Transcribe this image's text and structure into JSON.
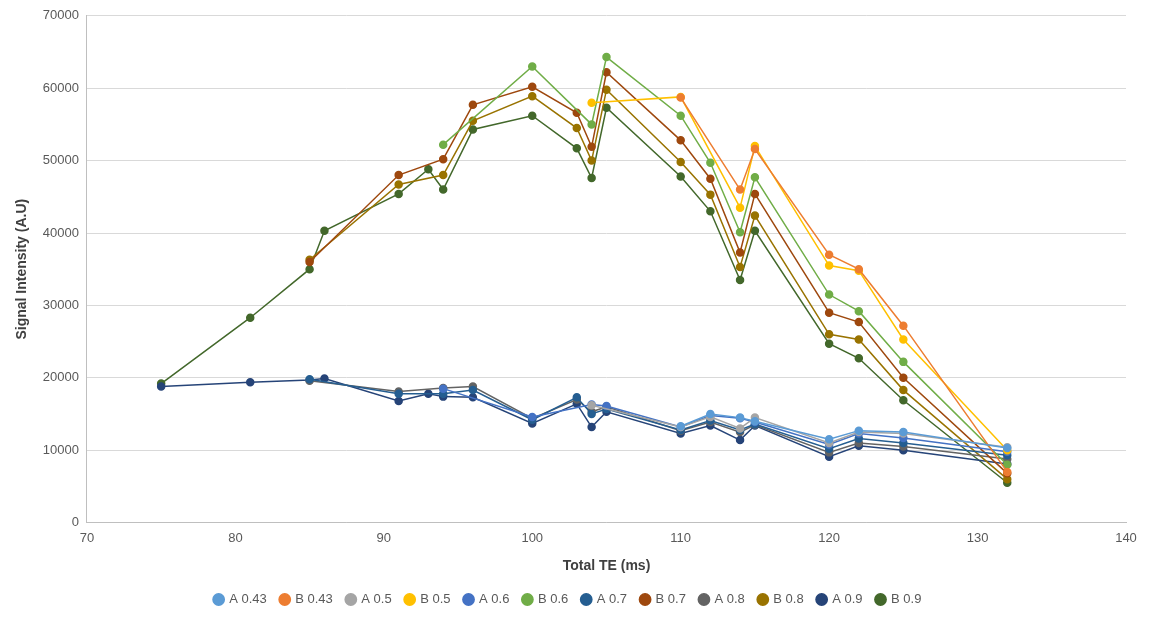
{
  "chart_data": {
    "type": "line",
    "x_label": "Total TE (ms)",
    "y_label": "Signal Intensity (A.U)",
    "xlim": [
      70,
      140
    ],
    "xticks": [
      70,
      80,
      90,
      100,
      110,
      120,
      130,
      140
    ],
    "ylim": [
      0,
      70000
    ],
    "yticks": [
      0,
      10000,
      20000,
      30000,
      40000,
      50000,
      60000,
      70000
    ],
    "grid": "y",
    "legend": "bottom",
    "marker": "circle",
    "series": [
      {
        "name": "A 0.43",
        "color": "#5b9bd5",
        "x": [
          110,
          112,
          114,
          115,
          120,
          122,
          125,
          132
        ],
        "values": [
          13300,
          15000,
          14500,
          14000,
          11500,
          12700,
          12500,
          10300
        ]
      },
      {
        "name": "B 0.43",
        "color": "#ed7d31",
        "x": [
          110,
          114,
          115,
          120,
          122,
          125,
          132
        ],
        "values": [
          58700,
          46000,
          51600,
          37000,
          35000,
          27200,
          7000
        ]
      },
      {
        "name": "A 0.5",
        "color": "#a5a5a5",
        "x": [
          104,
          110,
          112,
          114,
          115,
          120,
          122,
          125,
          132
        ],
        "values": [
          16200,
          13200,
          14600,
          13000,
          14500,
          11000,
          12500,
          12300,
          10400
        ]
      },
      {
        "name": "B 0.5",
        "color": "#ffc000",
        "x": [
          104,
          110,
          114,
          115,
          120,
          122,
          125,
          132
        ],
        "values": [
          58000,
          58800,
          43500,
          52000,
          35500,
          34800,
          25300,
          10000
        ]
      },
      {
        "name": "A 0.6",
        "color": "#4472c4",
        "x": [
          94,
          100,
          104,
          105,
          110,
          112,
          114,
          115,
          120,
          122,
          125,
          132
        ],
        "values": [
          18500,
          14600,
          16300,
          16100,
          13200,
          14800,
          14400,
          13900,
          10800,
          12300,
          11700,
          9800
        ]
      },
      {
        "name": "B 0.6",
        "color": "#70ad47",
        "x": [
          94,
          100,
          104,
          105,
          110,
          112,
          114,
          115,
          120,
          122,
          125,
          132
        ],
        "values": [
          52200,
          63000,
          55000,
          64300,
          56200,
          49700,
          40100,
          47700,
          31500,
          29200,
          22200,
          8000
        ]
      },
      {
        "name": "A 0.7",
        "color": "#255e91",
        "x": [
          85,
          91,
          94,
          96,
          100,
          103,
          104,
          105,
          110,
          112,
          114,
          115,
          120,
          122,
          125,
          132
        ],
        "values": [
          19800,
          17800,
          17800,
          18300,
          14200,
          17300,
          15000,
          15700,
          12800,
          14100,
          12800,
          13600,
          10200,
          11600,
          11000,
          9300
        ]
      },
      {
        "name": "B 0.7",
        "color": "#9e480e",
        "x": [
          85,
          91,
          94,
          96,
          100,
          103,
          104,
          105,
          110,
          112,
          114,
          115,
          120,
          122,
          125,
          132
        ],
        "values": [
          36000,
          48000,
          50200,
          57700,
          60200,
          56600,
          51900,
          62200,
          52800,
          47500,
          37300,
          45400,
          29000,
          27700,
          20000,
          6800
        ]
      },
      {
        "name": "A 0.8",
        "color": "#636363",
        "x": [
          85,
          91,
          94,
          96,
          100,
          103,
          104,
          105,
          110,
          112,
          114,
          115,
          120,
          122,
          125,
          132
        ],
        "values": [
          19600,
          18100,
          18600,
          18800,
          14400,
          17000,
          15300,
          16000,
          12700,
          13900,
          12500,
          13500,
          9700,
          11000,
          10500,
          8800
        ]
      },
      {
        "name": "B 0.8",
        "color": "#997300",
        "x": [
          85,
          91,
          94,
          96,
          100,
          103,
          104,
          105,
          110,
          112,
          114,
          115,
          120,
          122,
          125,
          132
        ],
        "values": [
          36300,
          46700,
          48000,
          55500,
          58900,
          54500,
          50000,
          59800,
          49800,
          45300,
          35300,
          42400,
          26000,
          25300,
          18300,
          6000
        ]
      },
      {
        "name": "A 0.9",
        "color": "#264478",
        "x": [
          75,
          81,
          85,
          86,
          91,
          93,
          94,
          96,
          100,
          103,
          104,
          105,
          110,
          112,
          114,
          115,
          120,
          122,
          125,
          132
        ],
        "values": [
          18800,
          19400,
          19700,
          19900,
          16800,
          17800,
          17400,
          17300,
          13700,
          16400,
          13200,
          15300,
          12300,
          13400,
          11400,
          13400,
          9100,
          10600,
          10000,
          8100
        ]
      },
      {
        "name": "B 0.9",
        "color": "#43682b",
        "x": [
          75,
          81,
          85,
          86,
          91,
          93,
          94,
          96,
          100,
          103,
          104,
          105,
          110,
          112,
          114,
          115,
          120,
          122,
          125,
          132
        ],
        "values": [
          19200,
          28300,
          35000,
          40300,
          45400,
          48800,
          46000,
          54300,
          56200,
          51700,
          47600,
          57300,
          47800,
          43000,
          33500,
          40300,
          24700,
          22700,
          16900,
          5500
        ]
      }
    ]
  }
}
